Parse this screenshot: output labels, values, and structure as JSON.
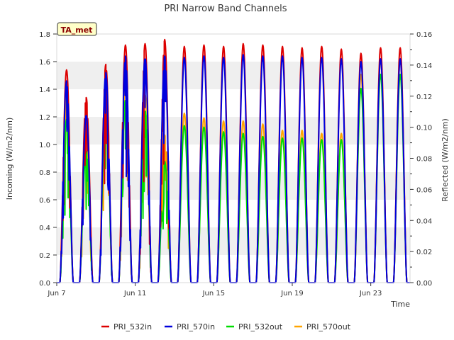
{
  "chart_data": {
    "type": "line",
    "title": "PRI Narrow Band Channels",
    "xlabel": "Time",
    "ylabel_left": "Incoming (W/m2/nm)",
    "ylabel_right": "Reflected (W/m2/nm)",
    "badge": "TA_met",
    "ylim_left": [
      0,
      1.8
    ],
    "ylim_right": [
      0,
      0.16
    ],
    "xlim_days": [
      7.0,
      25.0
    ],
    "x_ticks": [
      {
        "day": 7,
        "label": "Jun 7"
      },
      {
        "day": 11,
        "label": "Jun 11"
      },
      {
        "day": 15,
        "label": "Jun 15"
      },
      {
        "day": 19,
        "label": "Jun 19"
      },
      {
        "day": 23,
        "label": "Jun 23"
      }
    ],
    "y_ticks_left": [
      "0.0",
      "0.2",
      "0.4",
      "0.6",
      "0.8",
      "1.0",
      "1.2",
      "1.4",
      "1.6",
      "1.8"
    ],
    "y_ticks_right": [
      "0.00",
      "0.02",
      "0.04",
      "0.06",
      "0.08",
      "0.10",
      "0.12",
      "0.14",
      "0.16"
    ],
    "grid": "horizontal bands",
    "legend_position": "bottom",
    "days": [
      7.5,
      8.5,
      9.5,
      10.5,
      11.5,
      12.5,
      13.5,
      14.5,
      15.5,
      16.5,
      17.5,
      18.5,
      19.5,
      20.5,
      21.5,
      22.5,
      23.5,
      24.5
    ],
    "series": [
      {
        "name": "PRI_532in",
        "axis": "left",
        "color": "#dd0000",
        "daily_peaks": [
          1.54,
          1.34,
          1.58,
          1.72,
          1.73,
          1.76,
          1.71,
          1.72,
          1.71,
          1.73,
          1.72,
          1.71,
          1.7,
          1.71,
          1.69,
          1.66,
          1.7,
          1.7
        ]
      },
      {
        "name": "PRI_570in",
        "axis": "left",
        "color": "#0000dd",
        "daily_peaks": [
          1.46,
          1.21,
          1.52,
          1.64,
          1.63,
          1.64,
          1.63,
          1.64,
          1.63,
          1.65,
          1.64,
          1.64,
          1.63,
          1.63,
          1.62,
          1.6,
          1.62,
          1.62
        ]
      },
      {
        "name": "PRI_532out",
        "axis": "right",
        "color": "#00dd00",
        "daily_peaks": [
          0.105,
          0.085,
          0.115,
          0.118,
          0.111,
          0.078,
          0.101,
          0.1,
          0.097,
          0.096,
          0.094,
          0.093,
          0.093,
          0.092,
          0.092,
          0.125,
          0.134,
          0.134
        ]
      },
      {
        "name": "PRI_570out",
        "axis": "right",
        "color": "#ffa500",
        "daily_peaks": [
          0.123,
          0.1,
          0.127,
          0.127,
          0.121,
          0.095,
          0.109,
          0.106,
          0.104,
          0.104,
          0.102,
          0.098,
          0.098,
          0.096,
          0.096,
          0.134,
          0.144,
          0.144
        ]
      }
    ]
  }
}
